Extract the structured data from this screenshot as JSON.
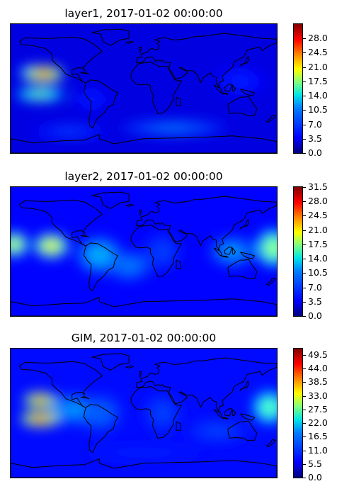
{
  "figure": {
    "panels": [
      {
        "title": "layer1, 2017-01-02 00:00:00",
        "colorbar": {
          "min": 0.0,
          "max": 31.5,
          "ticks": [
            "0.0",
            "3.5",
            "7.0",
            "10.5",
            "14.0",
            "17.5",
            "21.0",
            "24.5",
            "28.0"
          ]
        }
      },
      {
        "title": "layer2, 2017-01-02 00:00:00",
        "colorbar": {
          "min": 0.0,
          "max": 31.5,
          "ticks": [
            "0.0",
            "3.5",
            "7.0",
            "10.5",
            "14.0",
            "17.5",
            "21.0",
            "24.5",
            "28.0",
            "31.5"
          ]
        }
      },
      {
        "title": "GIM, 2017-01-02 00:00:00",
        "colorbar": {
          "min": 0.0,
          "max": 52.0,
          "ticks": [
            "0.0",
            "5.5",
            "11.0",
            "16.5",
            "22.0",
            "27.5",
            "33.0",
            "38.5",
            "44.0",
            "49.5"
          ]
        }
      }
    ]
  },
  "chart_data": [
    {
      "type": "heatmap",
      "title": "layer1, 2017-01-02 00:00:00",
      "colormap": "jet",
      "clim": [
        0,
        31.5
      ],
      "cbar_ticks": [
        0.0,
        3.5,
        7.0,
        10.5,
        14.0,
        17.5,
        21.0,
        24.5,
        28.0
      ],
      "x_range": [
        -180,
        180
      ],
      "y_range": [
        -90,
        90
      ],
      "background_value": 3,
      "blobs": [
        {
          "lon": -135,
          "lat": 20,
          "rlon": 26,
          "rlat": 11,
          "value": 27
        },
        {
          "lon": -152,
          "lat": 22,
          "rlon": 18,
          "rlat": 10,
          "value": 10
        },
        {
          "lon": -140,
          "lat": -8,
          "rlon": 32,
          "rlat": 9,
          "value": 17
        },
        {
          "lon": -70,
          "lat": -15,
          "rlon": 25,
          "rlat": 15,
          "value": 5
        },
        {
          "lon": 20,
          "lat": 10,
          "rlon": 30,
          "rlat": 20,
          "value": 3
        },
        {
          "lon": 130,
          "lat": 10,
          "rlon": 35,
          "rlat": 20,
          "value": 5
        },
        {
          "lon": 40,
          "lat": -55,
          "rlon": 70,
          "rlat": 10,
          "value": 8
        },
        {
          "lon": -100,
          "lat": -60,
          "rlon": 50,
          "rlat": 10,
          "value": 6
        }
      ]
    },
    {
      "type": "heatmap",
      "title": "layer2, 2017-01-02 00:00:00",
      "colormap": "jet",
      "clim": [
        0,
        31.5
      ],
      "cbar_ticks": [
        0.0,
        3.5,
        7.0,
        10.5,
        14.0,
        17.5,
        21.0,
        24.5,
        28.0,
        31.5
      ],
      "x_range": [
        -180,
        180
      ],
      "y_range": [
        -90,
        90
      ],
      "background_value": 4,
      "blobs": [
        {
          "lon": -125,
          "lat": 8,
          "rlon": 22,
          "rlat": 16,
          "value": 22
        },
        {
          "lon": -175,
          "lat": 10,
          "rlon": 18,
          "rlat": 16,
          "value": 20
        },
        {
          "lon": -60,
          "lat": -5,
          "rlon": 30,
          "rlat": 25,
          "value": 10
        },
        {
          "lon": -20,
          "lat": -20,
          "rlon": 30,
          "rlat": 20,
          "value": 8
        },
        {
          "lon": 25,
          "lat": 0,
          "rlon": 25,
          "rlat": 25,
          "value": 6
        },
        {
          "lon": 175,
          "lat": 5,
          "rlon": 22,
          "rlat": 25,
          "value": 18
        },
        {
          "lon": 120,
          "lat": 0,
          "rlon": 30,
          "rlat": 20,
          "value": 9
        }
      ]
    },
    {
      "type": "heatmap",
      "title": "GIM, 2017-01-02 00:00:00",
      "colormap": "jet",
      "clim": [
        0,
        52.0
      ],
      "cbar_ticks": [
        0.0,
        5.5,
        11.0,
        16.5,
        22.0,
        27.5,
        33.0,
        38.5,
        44.0,
        49.5
      ],
      "x_range": [
        -180,
        180
      ],
      "y_range": [
        -90,
        90
      ],
      "background_value": 7,
      "blobs": [
        {
          "lon": -140,
          "lat": 18,
          "rlon": 22,
          "rlat": 10,
          "value": 43
        },
        {
          "lon": -140,
          "lat": -8,
          "rlon": 26,
          "rlat": 10,
          "value": 45
        },
        {
          "lon": -95,
          "lat": 5,
          "rlon": 30,
          "rlat": 20,
          "value": 15
        },
        {
          "lon": -60,
          "lat": 0,
          "rlon": 30,
          "rlat": 25,
          "value": 12
        },
        {
          "lon": 25,
          "lat": 0,
          "rlon": 25,
          "rlat": 25,
          "value": 10
        },
        {
          "lon": 170,
          "lat": 8,
          "rlon": 22,
          "rlat": 22,
          "value": 26
        },
        {
          "lon": 100,
          "lat": -25,
          "rlon": 40,
          "rlat": 15,
          "value": 10
        },
        {
          "lon": 0,
          "lat": -55,
          "rlon": 80,
          "rlat": 10,
          "value": 8
        }
      ]
    }
  ]
}
